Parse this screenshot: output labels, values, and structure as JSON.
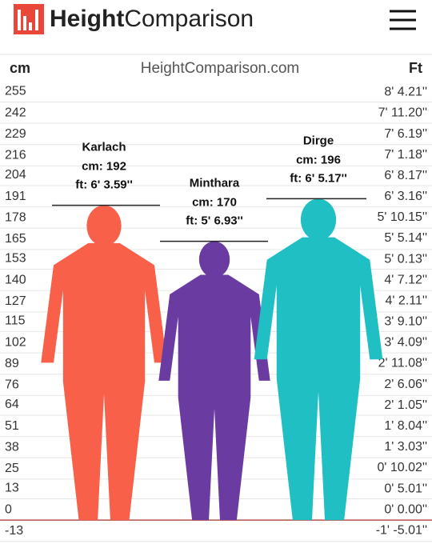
{
  "header": {
    "logo_bold": "Height",
    "logo_rest": "Comparison"
  },
  "chart_data": {
    "type": "height-comparison",
    "left_axis_label": "cm",
    "title": "HeightComparison.com",
    "right_axis_label": "Ft",
    "ylim": [
      -17,
      284
    ],
    "yticks": [
      255,
      242,
      229,
      216,
      204,
      191,
      178,
      165,
      153,
      140,
      127,
      115,
      102,
      89,
      76,
      64,
      51,
      38,
      25,
      13,
      0,
      -13
    ],
    "y2lim": [
      -6.693,
      111.81
    ],
    "y2ticks": [
      {
        "value": 100.21,
        "label": "8' 4.21''"
      },
      {
        "value": 95.2,
        "label": "7' 11.20''"
      },
      {
        "value": 90.19,
        "label": "7' 6.19''"
      },
      {
        "value": 85.18,
        "label": "7' 1.18''"
      },
      {
        "value": 80.17,
        "label": "6' 8.17''"
      },
      {
        "value": 75.16,
        "label": "6' 3.16''"
      },
      {
        "value": 70.15,
        "label": "5' 10.15''"
      },
      {
        "value": 65.14,
        "label": "5' 5.14''"
      },
      {
        "value": 60.13,
        "label": "5' 0.13''"
      },
      {
        "value": 55.12,
        "label": "4' 7.12''"
      },
      {
        "value": 50.11,
        "label": "4' 2.11''"
      },
      {
        "value": 45.1,
        "label": "3' 9.10''"
      },
      {
        "value": 40.09,
        "label": "3' 4.09''"
      },
      {
        "value": 35.08,
        "label": "2' 11.08''"
      },
      {
        "value": 30.06,
        "label": "2' 6.06''"
      },
      {
        "value": 25.05,
        "label": "2' 1.05''"
      },
      {
        "value": 20.04,
        "label": "1' 8.04''"
      },
      {
        "value": 15.03,
        "label": "1' 3.03''"
      },
      {
        "value": 10.02,
        "label": "0' 10.02''"
      },
      {
        "value": 5.01,
        "label": "0' 5.01''"
      },
      {
        "value": 0,
        "label": "0' 0.00''"
      },
      {
        "value": -5.01,
        "label": "-1' -5.01''"
      }
    ],
    "grid": true,
    "categories": [
      "Karlach",
      "Minthara",
      "Dirge"
    ],
    "values": [
      192,
      170,
      196
    ],
    "value_labels": [
      "cm: 192",
      "cm: 170",
      "cm: 196"
    ],
    "ft_labels": [
      "ft: 6' 3.59''",
      "ft: 5' 6.93''",
      "ft: 6' 5.17''"
    ],
    "colors": [
      "#f9604a",
      "#6a3ba0",
      "#1fbfc4"
    ]
  }
}
